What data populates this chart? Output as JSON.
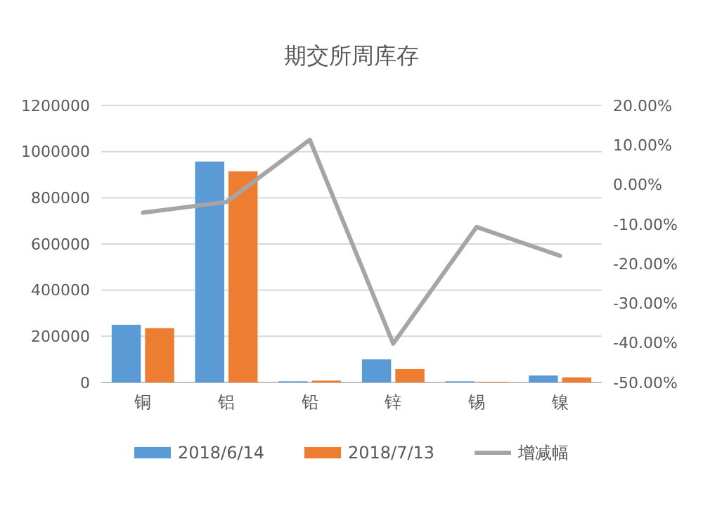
{
  "chart_data": {
    "type": "bar",
    "title": "期交所周库存",
    "categories": [
      "铜",
      "铝",
      "铅",
      "锌",
      "锡",
      "镍"
    ],
    "series": [
      {
        "name": "2018/6/14",
        "color": "#5b9bd5",
        "values": [
          250000,
          957000,
          5000,
          100000,
          5000,
          30000
        ]
      },
      {
        "name": "2018/7/13",
        "color": "#ed7d31",
        "values": [
          235000,
          915000,
          8000,
          58000,
          3000,
          22000
        ]
      },
      {
        "name": "增减幅",
        "type": "line",
        "axis": "y2",
        "color": "#a5a5a5",
        "values": [
          -7.1,
          -4.4,
          11.3,
          -40.2,
          -10.7,
          -18
        ]
      }
    ],
    "ylim": [
      0,
      1200000
    ],
    "yticks": [
      0,
      200000,
      400000,
      600000,
      800000,
      1000000,
      1200000
    ],
    "y2lim": [
      -50,
      20
    ],
    "y2ticks": [
      {
        "value": -50,
        "label": "-50.00%"
      },
      {
        "value": -40,
        "label": "-40.00%"
      },
      {
        "value": -30,
        "label": "-30.00%"
      },
      {
        "value": -20,
        "label": "-20.00%"
      },
      {
        "value": -10,
        "label": "-10.00%"
      },
      {
        "value": 0,
        "label": "0.00%"
      },
      {
        "value": 10,
        "label": "10.00%"
      },
      {
        "value": 20,
        "label": "20.00%"
      }
    ],
    "grid": "y",
    "legend": "bottom",
    "marker": "none"
  }
}
